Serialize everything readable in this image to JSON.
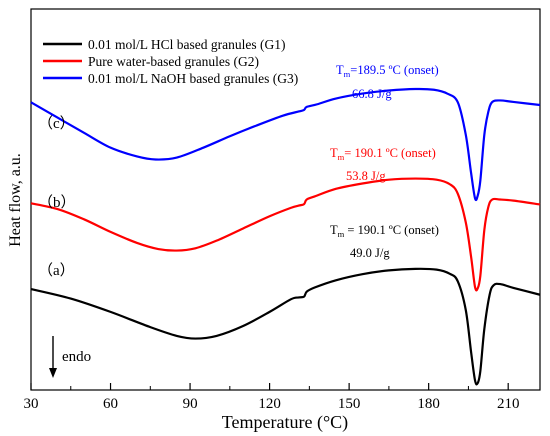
{
  "chart_data": {
    "type": "line",
    "xlabel": "Temperature (°C)",
    "ylabel": "Heat flow, a.u.",
    "xlim": [
      30,
      222
    ],
    "ylim": [
      0,
      100
    ],
    "xticks": [
      30,
      60,
      90,
      120,
      150,
      180,
      210
    ],
    "y_tick_labels": false,
    "grid": false,
    "legend_position": "top-left",
    "series": [
      {
        "name": "0.01 mol/L HCl based granules (G1)",
        "color": "#000000",
        "curve_label": "（a）",
        "points": [
          [
            30,
            26.5
          ],
          [
            45,
            24
          ],
          [
            60,
            20.5
          ],
          [
            75,
            16.5
          ],
          [
            85,
            14.2
          ],
          [
            92,
            13.5
          ],
          [
            100,
            14.2
          ],
          [
            110,
            16.8
          ],
          [
            120,
            20.5
          ],
          [
            128,
            23.8
          ],
          [
            131,
            24.3
          ],
          [
            133,
            24.5
          ],
          [
            134,
            25.8
          ],
          [
            137,
            26.9
          ],
          [
            145,
            28.8
          ],
          [
            155,
            30.4
          ],
          [
            165,
            31.4
          ],
          [
            175,
            31.8
          ],
          [
            183,
            31.6
          ],
          [
            188,
            30.5
          ],
          [
            191,
            28.5
          ],
          [
            194,
            21
          ],
          [
            196,
            10
          ],
          [
            197.5,
            2.5
          ],
          [
            198.5,
            1.8
          ],
          [
            199.5,
            5
          ],
          [
            201,
            16
          ],
          [
            203,
            25
          ],
          [
            204.5,
            27.5
          ],
          [
            207,
            27.8
          ],
          [
            212,
            26.8
          ],
          [
            222,
            25
          ]
        ]
      },
      {
        "name": "Pure water-based granules (G2)",
        "color": "#ff0000",
        "curve_label": "（b）",
        "points": [
          [
            30,
            49
          ],
          [
            40,
            47.5
          ],
          [
            50,
            44.8
          ],
          [
            60,
            41.5
          ],
          [
            70,
            38.6
          ],
          [
            78,
            37
          ],
          [
            85,
            36.6
          ],
          [
            92,
            37.2
          ],
          [
            100,
            39.2
          ],
          [
            110,
            42.4
          ],
          [
            120,
            45.6
          ],
          [
            128,
            47.8
          ],
          [
            131,
            48.4
          ],
          [
            133,
            48.8
          ],
          [
            134,
            50
          ],
          [
            137,
            50.8
          ],
          [
            145,
            52.8
          ],
          [
            155,
            54.2
          ],
          [
            165,
            55.2
          ],
          [
            175,
            55.5
          ],
          [
            183,
            55.2
          ],
          [
            188,
            54
          ],
          [
            191,
            51.5
          ],
          [
            194,
            44
          ],
          [
            196,
            35
          ],
          [
            197.5,
            27
          ],
          [
            198.5,
            26.7
          ],
          [
            199.5,
            30
          ],
          [
            201,
            42
          ],
          [
            202.5,
            48
          ],
          [
            204,
            50
          ],
          [
            207,
            50
          ],
          [
            212,
            49.7
          ],
          [
            222,
            48.7
          ]
        ]
      },
      {
        "name": "0.01 mol/L NaOH based granules (G3)",
        "color": "#0000ff",
        "curve_label": "（c）",
        "points": [
          [
            30,
            75.5
          ],
          [
            40,
            71.5
          ],
          [
            50,
            67.5
          ],
          [
            60,
            63.6
          ],
          [
            70,
            61.3
          ],
          [
            77,
            60.5
          ],
          [
            85,
            61
          ],
          [
            95,
            63.6
          ],
          [
            105,
            66.6
          ],
          [
            115,
            69.4
          ],
          [
            125,
            72
          ],
          [
            131,
            73.1
          ],
          [
            133,
            73.5
          ],
          [
            134,
            74.3
          ],
          [
            138,
            75
          ],
          [
            145,
            76.5
          ],
          [
            155,
            77.8
          ],
          [
            165,
            78.6
          ],
          [
            175,
            79
          ],
          [
            182,
            78.8
          ],
          [
            187,
            77.8
          ],
          [
            191,
            75.5
          ],
          [
            194,
            67
          ],
          [
            196,
            57
          ],
          [
            197.5,
            50.3
          ],
          [
            198.5,
            51
          ],
          [
            199.5,
            55
          ],
          [
            201,
            67
          ],
          [
            202.5,
            73
          ],
          [
            204,
            75.6
          ],
          [
            207,
            76
          ],
          [
            212,
            75.6
          ],
          [
            222,
            74.8
          ]
        ]
      }
    ],
    "annotations": [
      {
        "series": 2,
        "line1": "T",
        "sub": "m",
        "line1_rest": "=189.5 ºC (onset)",
        "line2": "66.8 J/g"
      },
      {
        "series": 1,
        "line1": "T",
        "sub": "m",
        "line1_rest": "= 190.1 ºC (onset)",
        "line2": "53.8 J/g"
      },
      {
        "series": 0,
        "line1": "T",
        "sub": "m",
        "line1_rest": " = 190.1 ºC (onset)",
        "line2": "49.0 J/g"
      }
    ],
    "endo_label": "endo"
  }
}
